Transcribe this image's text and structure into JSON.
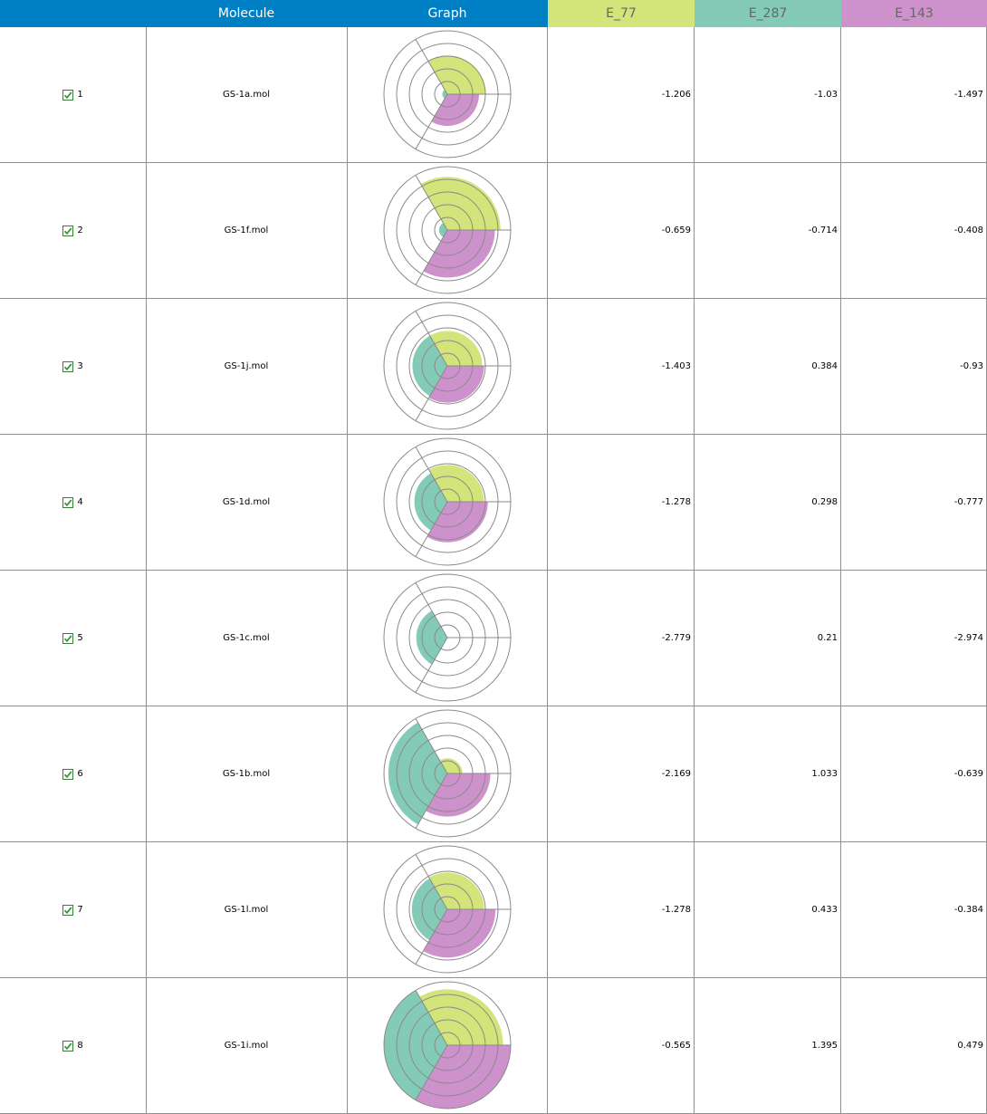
{
  "header": {
    "col_index": "",
    "col_molecule": "Molecule",
    "col_graph": "Graph",
    "col_e77": "E_77",
    "col_e287": "E_287",
    "col_e143": "E_143"
  },
  "colors": {
    "header_blue": "#0080c4",
    "e77": "#d3e47a",
    "e287": "#83cbb7",
    "e143": "#cd92cc",
    "grid": "#8f8f8f",
    "checkbox_check": "#2e9e2e"
  },
  "rows": [
    {
      "index": "1",
      "checked": true,
      "molecule": "GS-1a.mol",
      "e77": "-1.206",
      "e287": "-1.03",
      "e143": "-1.497",
      "r": [
        0.61,
        0.08,
        0.5
      ]
    },
    {
      "index": "2",
      "checked": true,
      "molecule": "GS-1f.mol",
      "e77": "-0.659",
      "e287": "-0.714",
      "e143": "-0.408",
      "r": [
        0.84,
        0.13,
        0.75
      ]
    },
    {
      "index": "3",
      "checked": true,
      "molecule": "GS-1j.mol",
      "e77": "-1.403",
      "e287": "0.384",
      "e143": "-0.93",
      "r": [
        0.55,
        0.55,
        0.58
      ]
    },
    {
      "index": "4",
      "checked": true,
      "molecule": "GS-1d.mol",
      "e77": "-1.278",
      "e287": "0.298",
      "e143": "-0.777",
      "r": [
        0.58,
        0.52,
        0.64
      ]
    },
    {
      "index": "5",
      "checked": true,
      "molecule": "GS-1c.mol",
      "e77": "-2.779",
      "e287": "0.21",
      "e143": "-2.974",
      "r": [
        0.0,
        0.49,
        0.0
      ]
    },
    {
      "index": "6",
      "checked": true,
      "molecule": "GS-1b.mol",
      "e77": "-2.169",
      "e287": "1.033",
      "e143": "-0.639",
      "r": [
        0.24,
        0.93,
        0.68
      ]
    },
    {
      "index": "7",
      "checked": true,
      "molecule": "GS-1l.mol",
      "e77": "-1.278",
      "e287": "0.433",
      "e143": "-0.384",
      "r": [
        0.58,
        0.56,
        0.76
      ]
    },
    {
      "index": "8",
      "checked": true,
      "molecule": "GS-1i.mol",
      "e77": "-0.565",
      "e287": "1.395",
      "e143": "0.479",
      "r": [
        0.88,
        1.0,
        1.0
      ]
    }
  ]
}
